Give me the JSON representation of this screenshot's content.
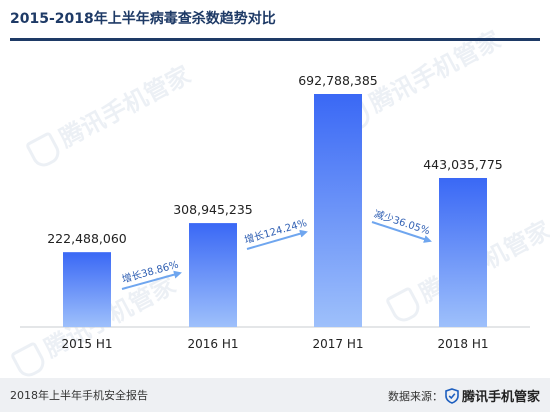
{
  "header": {
    "title": "2015-2018年上半年病毒查杀数趋势对比"
  },
  "watermark": {
    "text": "腾讯手机管家"
  },
  "footer": {
    "report": "2018年上半年手机安全报告",
    "source_label": "数据来源：",
    "source_brand": "腾讯手机管家"
  },
  "colors": {
    "bar_top": "#3a68f5",
    "bar_bottom": "#9ec0fb",
    "arrow": "#6fa6ef",
    "title": "#1e3a66"
  },
  "chart_data": {
    "type": "bar",
    "categories": [
      "2015 H1",
      "2016 H1",
      "2017 H1",
      "2018 H1"
    ],
    "values": [
      222488060,
      308945235,
      692788385,
      443035775
    ],
    "value_labels": [
      "222,488,060",
      "308,945,235",
      "692,788,385",
      "443,035,775"
    ],
    "annotations": [
      {
        "text": "增长38.86%",
        "from": "2015 H1",
        "to": "2016 H1"
      },
      {
        "text": "增长124.24%",
        "from": "2016 H1",
        "to": "2017 H1"
      },
      {
        "text": "减少36.05%",
        "from": "2017 H1",
        "to": "2018 H1"
      }
    ],
    "grid": false,
    "legend": "none"
  }
}
